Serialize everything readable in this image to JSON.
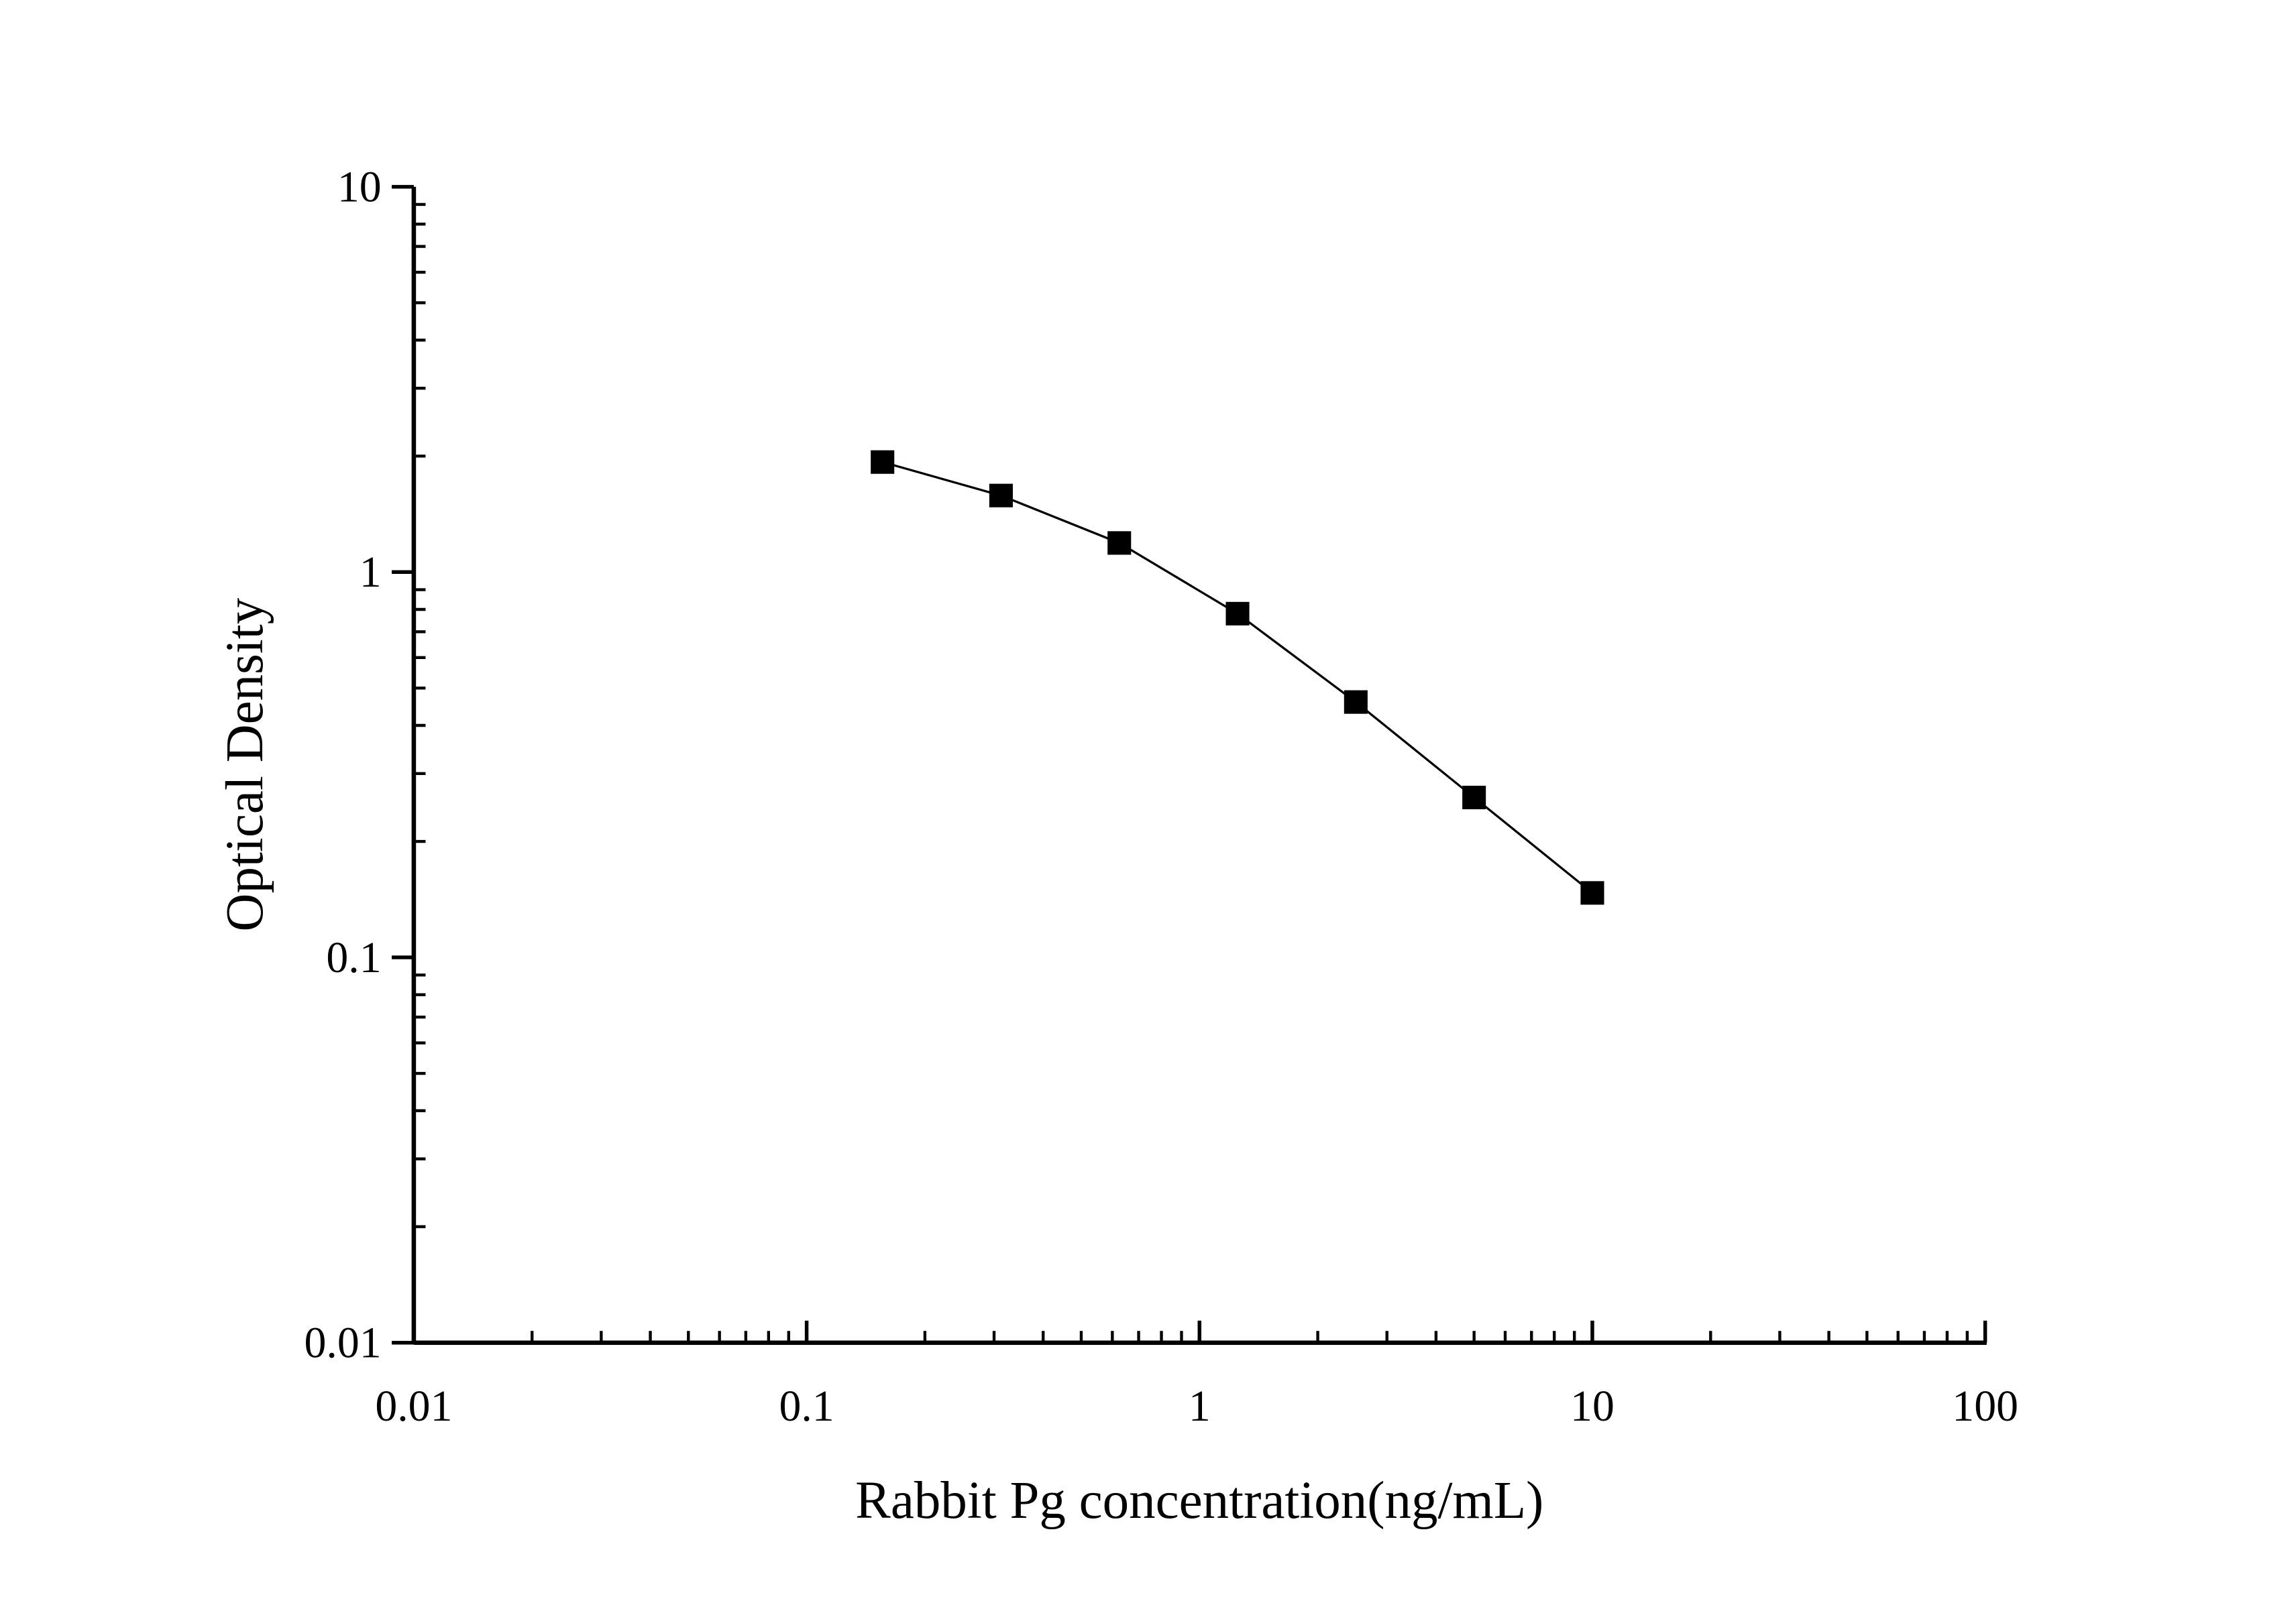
{
  "chart_data": {
    "type": "line",
    "title": "",
    "xlabel": "Rabbit Pg concentration(ng/mL)",
    "ylabel": "Optical Density",
    "xscale": "log",
    "yscale": "log",
    "xlim": [
      0.01,
      100
    ],
    "ylim": [
      0.01,
      10
    ],
    "xticks": [
      0.01,
      0.1,
      1,
      10,
      100
    ],
    "xtick_labels": [
      "0.01",
      "0.1",
      "1",
      "10",
      "100"
    ],
    "yticks": [
      0.01,
      0.1,
      1,
      10
    ],
    "ytick_labels": [
      "0.01",
      "0.1",
      "1",
      "10"
    ],
    "grid": false,
    "marker": "square",
    "color": "#000000",
    "series": [
      {
        "x": [
          0.156,
          0.3125,
          0.625,
          1.25,
          2.5,
          5,
          10
        ],
        "y": [
          1.93,
          1.58,
          1.19,
          0.78,
          0.46,
          0.26,
          0.147
        ]
      }
    ]
  }
}
